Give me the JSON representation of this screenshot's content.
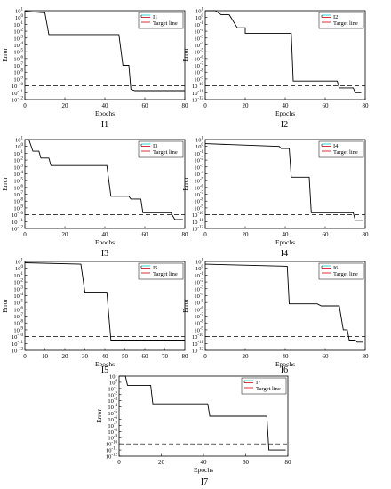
{
  "chart_data": [
    {
      "type": "line",
      "caption": "I1",
      "xlabel": "Epochs",
      "ylabel": "Error",
      "xlim": [
        0,
        80
      ],
      "xticks": [
        "0",
        "20",
        "40",
        "60",
        "80"
      ],
      "ylim_log10": [
        -12,
        1
      ],
      "yticks_log10": [
        1,
        0,
        -1,
        -2,
        -3,
        -4,
        -5,
        -6,
        -7,
        -8,
        -9,
        -10,
        -11,
        -12
      ],
      "legend_position": "top-right",
      "legend": [
        "I1",
        "Target line"
      ],
      "series": [
        {
          "name": "I1",
          "color": "#000000",
          "style": "solid",
          "x": [
            0,
            10,
            12,
            47,
            49,
            52,
            53,
            55,
            80
          ],
          "y_log10": [
            0.9,
            0.7,
            -2.5,
            -2.5,
            -7.0,
            -7.0,
            -10.5,
            -10.7,
            -10.7
          ]
        },
        {
          "name": "Target line",
          "color": "#000000",
          "style": "dashed",
          "x": [
            0,
            80
          ],
          "y_log10": [
            -10,
            -10
          ]
        }
      ]
    },
    {
      "type": "line",
      "caption": "I2",
      "xlabel": "Epochs",
      "ylabel": "Error",
      "xlim": [
        0,
        80
      ],
      "xticks": [
        "0",
        "20",
        "40",
        "60",
        "80"
      ],
      "ylim_log10": [
        -12,
        1
      ],
      "yticks_log10": [
        1,
        0,
        -1,
        -2,
        -3,
        -4,
        -5,
        -6,
        -7,
        -8,
        -9,
        -10,
        -11,
        -12
      ],
      "legend_position": "top-right",
      "legend": [
        "I2",
        "Target line"
      ],
      "series": [
        {
          "name": "I2",
          "color": "#000000",
          "style": "solid",
          "x": [
            0,
            5,
            8,
            12,
            16,
            20,
            20,
            43,
            44,
            66,
            67,
            74,
            75,
            78
          ],
          "y_log10": [
            1.0,
            1.0,
            0.4,
            0.4,
            -1.5,
            -1.5,
            -2.3,
            -2.3,
            -9.3,
            -9.3,
            -10.3,
            -10.3,
            -11.0,
            -11.0
          ]
        },
        {
          "name": "Target line",
          "color": "#000000",
          "style": "dashed",
          "x": [
            0,
            80
          ],
          "y_log10": [
            -10,
            -10
          ]
        }
      ]
    },
    {
      "type": "line",
      "caption": "I3",
      "xlabel": "Epochs",
      "ylabel": "Error",
      "xlim": [
        0,
        80
      ],
      "xticks": [
        "0",
        "20",
        "40",
        "60",
        "80"
      ],
      "ylim_log10": [
        -12,
        1
      ],
      "yticks_log10": [
        1,
        0,
        -1,
        -2,
        -3,
        -4,
        -5,
        -6,
        -7,
        -8,
        -9,
        -10,
        -11,
        -12
      ],
      "legend_position": "top-right",
      "legend": [
        "I3",
        "Target line"
      ],
      "series": [
        {
          "name": "I3",
          "color": "#000000",
          "style": "solid",
          "x": [
            0,
            2,
            4,
            7,
            8,
            12,
            13,
            41,
            43,
            52,
            53,
            58,
            59,
            73,
            75,
            79
          ],
          "y_log10": [
            1.0,
            1.0,
            -0.7,
            -0.7,
            -1.7,
            -1.7,
            -2.8,
            -2.8,
            -7.3,
            -7.3,
            -7.7,
            -7.7,
            -9.7,
            -9.7,
            -10.7,
            -10.7
          ]
        },
        {
          "name": "Target line",
          "color": "#000000",
          "style": "dashed",
          "x": [
            0,
            80
          ],
          "y_log10": [
            -10,
            -10
          ]
        }
      ]
    },
    {
      "type": "line",
      "caption": "I4",
      "xlabel": "Epochs",
      "ylabel": "Error",
      "xlim": [
        0,
        80
      ],
      "xticks": [
        "0",
        "20",
        "40",
        "60",
        "80"
      ],
      "ylim_log10": [
        -12,
        1
      ],
      "yticks_log10": [
        1,
        0,
        -1,
        -2,
        -3,
        -4,
        -5,
        -6,
        -7,
        -8,
        -9,
        -10,
        -11,
        -12
      ],
      "legend_position": "top-right",
      "legend": [
        "I4",
        "Target line"
      ],
      "series": [
        {
          "name": "I4",
          "color": "#000000",
          "style": "solid",
          "x": [
            0,
            37,
            38,
            42,
            43,
            52,
            53,
            74,
            75,
            79
          ],
          "y_log10": [
            0.4,
            0.0,
            -0.3,
            -0.3,
            -4.5,
            -4.5,
            -9.7,
            -9.7,
            -10.8,
            -10.8
          ]
        },
        {
          "name": "Target line",
          "color": "#000000",
          "style": "dashed",
          "x": [
            0,
            80
          ],
          "y_log10": [
            -10,
            -10
          ]
        }
      ]
    },
    {
      "type": "line",
      "caption": "I5",
      "xlabel": "Epochs",
      "ylabel": "Error",
      "xlim": [
        0,
        80
      ],
      "xticks": [
        "0",
        "10",
        "20",
        "30",
        "40",
        "50",
        "60",
        "70",
        "80"
      ],
      "ylim_log10": [
        -12,
        1
      ],
      "yticks_log10": [
        1,
        0,
        -1,
        -2,
        -3,
        -4,
        -5,
        -6,
        -7,
        -8,
        -9,
        -10,
        -11,
        -12
      ],
      "legend_position": "top-right",
      "legend": [
        "I5",
        "Target line"
      ],
      "series": [
        {
          "name": "I5",
          "color": "#000000",
          "style": "solid",
          "x": [
            0,
            28,
            30,
            41,
            43,
            80
          ],
          "y_log10": [
            0.8,
            0.6,
            -3.5,
            -3.5,
            -10.5,
            -10.5
          ]
        },
        {
          "name": "Target line",
          "color": "#000000",
          "style": "dashed",
          "x": [
            0,
            80
          ],
          "y_log10": [
            -10,
            -10
          ]
        }
      ]
    },
    {
      "type": "line",
      "caption": "I6",
      "xlabel": "Epochs",
      "ylabel": "Error",
      "xlim": [
        0,
        80
      ],
      "xticks": [
        "0",
        "20",
        "40",
        "60",
        "80"
      ],
      "ylim_log10": [
        -12,
        1
      ],
      "yticks_log10": [
        1,
        0,
        -1,
        -2,
        -3,
        -4,
        -5,
        -6,
        -7,
        -8,
        -9,
        -10,
        -11,
        -12
      ],
      "legend_position": "top-right",
      "legend": [
        "I6",
        "Target line"
      ],
      "series": [
        {
          "name": "I6",
          "color": "#000000",
          "style": "solid",
          "x": [
            0,
            41,
            42,
            56,
            58,
            67,
            69,
            71,
            72,
            75,
            76,
            79
          ],
          "y_log10": [
            0.6,
            0.3,
            -5.2,
            -5.2,
            -5.5,
            -5.5,
            -9.0,
            -9.0,
            -10.5,
            -10.5,
            -10.8,
            -10.8
          ]
        },
        {
          "name": "Target line",
          "color": "#000000",
          "style": "dashed",
          "x": [
            0,
            80
          ],
          "y_log10": [
            -10,
            -10
          ]
        }
      ]
    },
    {
      "type": "line",
      "caption": "I7",
      "xlabel": "Epochs",
      "ylabel": "Error",
      "xlim": [
        0,
        80
      ],
      "xticks": [
        "0",
        "20",
        "40",
        "60",
        "80"
      ],
      "ylim_log10": [
        -12,
        1
      ],
      "yticks_log10": [
        1,
        0,
        -1,
        -2,
        -3,
        -4,
        -5,
        -6,
        -7,
        -8,
        -9,
        -10,
        -11,
        -12
      ],
      "legend_position": "top-right",
      "legend": [
        "I7",
        "Target line"
      ],
      "series": [
        {
          "name": "I7",
          "color": "#000000",
          "style": "solid",
          "x": [
            0,
            3,
            4,
            15,
            16,
            42,
            43,
            70,
            71,
            79
          ],
          "y_log10": [
            1.0,
            1.0,
            -0.5,
            -0.5,
            -3.5,
            -3.5,
            -5.5,
            -5.5,
            -11.0,
            -11.0
          ]
        },
        {
          "name": "Target line",
          "color": "#000000",
          "style": "dashed",
          "x": [
            0,
            80
          ],
          "y_log10": [
            -10,
            -10
          ]
        }
      ]
    }
  ]
}
